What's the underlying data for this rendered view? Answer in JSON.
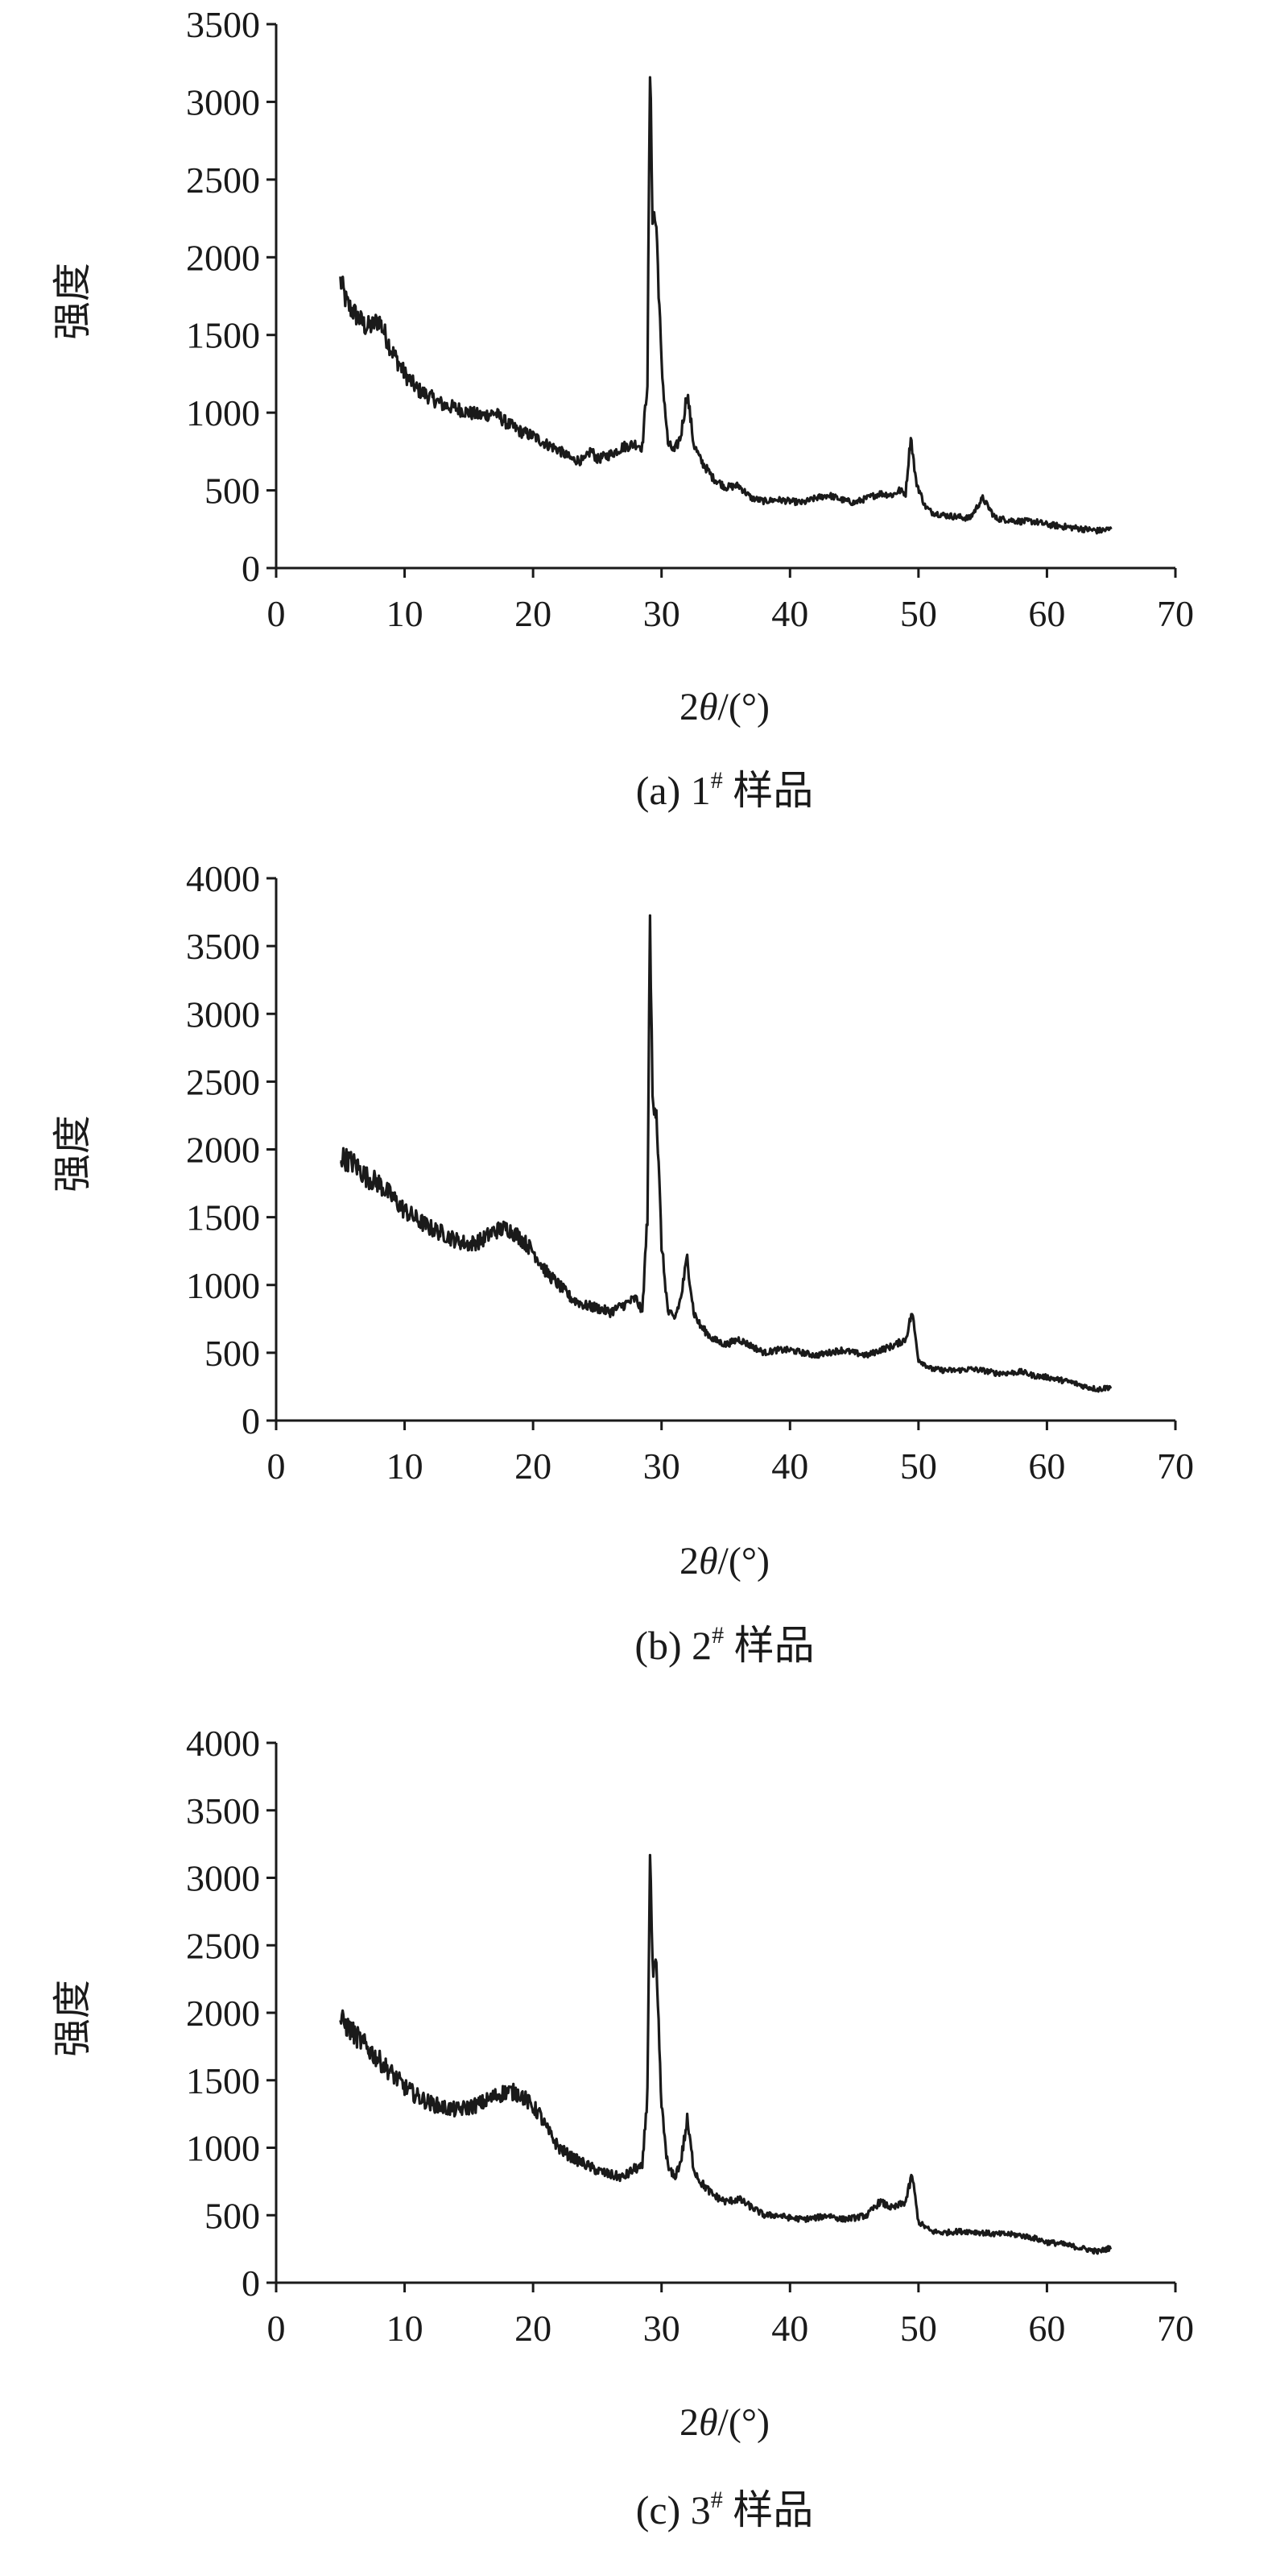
{
  "chart_data": [
    {
      "type": "line",
      "ylabel": "强度",
      "xlabel": "2θ/(°)",
      "xlabel_parts": {
        "num": "2",
        "theta": "θ",
        "unit": "/(°)"
      },
      "caption_parts": {
        "prefix": "(a) ",
        "num": "1",
        "sup": "#",
        "suffix": " 样品"
      },
      "xlim": [
        0,
        70
      ],
      "ylim": [
        0,
        3500
      ],
      "xticks": [
        0,
        10,
        20,
        30,
        40,
        50,
        60,
        70
      ],
      "yticks": [
        0,
        500,
        1000,
        1500,
        2000,
        2500,
        3000,
        3500
      ],
      "grid": false,
      "series": [
        {
          "x": [
            5.0,
            5.5,
            6.0,
            7.0,
            7.5,
            8.0,
            9.0,
            10.0,
            11.0,
            12.0,
            13.0,
            14.0,
            15.0,
            16.0,
            17.0,
            18.0,
            19.0,
            20.0,
            21.0,
            22.0,
            23.0,
            24.0,
            24.5,
            25.0,
            26.0,
            27.0,
            28.0,
            28.5,
            28.9,
            29.1,
            29.3,
            29.6,
            30.0,
            30.5,
            31.0,
            31.5,
            32.0,
            32.5,
            33.0,
            34.0,
            35.0,
            36.0,
            37.0,
            38.0,
            39.0,
            40.0,
            41.0,
            42.0,
            43.0,
            44.0,
            45.0,
            46.0,
            47.0,
            48.0,
            48.5,
            49.0,
            49.4,
            49.8,
            50.5,
            51.0,
            52.0,
            53.0,
            54.0,
            55.0,
            56.0,
            57.0,
            58.0,
            59.0,
            60.0,
            61.0,
            62.0,
            63.0,
            64.0,
            65.0
          ],
          "y": [
            1850,
            1700,
            1650,
            1550,
            1560,
            1600,
            1400,
            1250,
            1150,
            1100,
            1050,
            1030,
            1000,
            980,
            1000,
            930,
            880,
            850,
            800,
            760,
            700,
            690,
            760,
            700,
            730,
            780,
            800,
            780,
            1200,
            3200,
            2300,
            2200,
            1300,
            800,
            750,
            850,
            1130,
            800,
            700,
            580,
            520,
            530,
            450,
            430,
            440,
            430,
            420,
            450,
            470,
            440,
            420,
            450,
            480,
            470,
            500,
            480,
            850,
            560,
            400,
            360,
            340,
            330,
            320,
            450,
            320,
            310,
            300,
            300,
            280,
            270,
            260,
            250,
            240,
            250
          ]
        }
      ]
    },
    {
      "type": "line",
      "ylabel": "强度",
      "xlabel": "2θ/(°)",
      "xlabel_parts": {
        "num": "2",
        "theta": "θ",
        "unit": "/(°)"
      },
      "caption_parts": {
        "prefix": "(b) ",
        "num": "2",
        "sup": "#",
        "suffix": " 样品"
      },
      "xlim": [
        0,
        70
      ],
      "ylim": [
        0,
        4000
      ],
      "xticks": [
        0,
        10,
        20,
        30,
        40,
        50,
        60,
        70
      ],
      "yticks": [
        0,
        500,
        1000,
        1500,
        2000,
        2500,
        3000,
        3500,
        4000
      ],
      "grid": false,
      "series": [
        {
          "x": [
            5.0,
            6.0,
            7.0,
            8.0,
            9.0,
            10.0,
            11.0,
            12.0,
            13.0,
            14.0,
            15.0,
            16.0,
            17.0,
            18.0,
            19.0,
            20.0,
            21.0,
            22.0,
            23.0,
            24.0,
            25.0,
            26.0,
            27.0,
            28.0,
            28.5,
            28.9,
            29.1,
            29.3,
            29.6,
            30.0,
            30.5,
            31.0,
            31.5,
            32.0,
            32.5,
            33.0,
            34.0,
            35.0,
            36.0,
            37.0,
            38.0,
            39.0,
            40.0,
            41.0,
            42.0,
            43.0,
            44.0,
            45.0,
            46.0,
            47.0,
            48.0,
            49.0,
            49.5,
            50.0,
            51.0,
            52.0,
            53.0,
            54.0,
            55.0,
            56.0,
            57.0,
            58.0,
            59.0,
            60.0,
            61.0,
            62.0,
            63.0,
            64.0,
            65.0
          ],
          "y": [
            1950,
            1900,
            1800,
            1750,
            1650,
            1550,
            1480,
            1420,
            1380,
            1330,
            1300,
            1330,
            1400,
            1420,
            1350,
            1250,
            1100,
            1000,
            900,
            850,
            830,
            800,
            850,
            900,
            800,
            1500,
            3650,
            2400,
            2300,
            1300,
            800,
            750,
            900,
            1200,
            800,
            700,
            600,
            560,
            600,
            550,
            500,
            520,
            520,
            500,
            480,
            500,
            520,
            500,
            480,
            520,
            550,
            600,
            800,
            450,
            380,
            370,
            370,
            380,
            370,
            350,
            350,
            360,
            330,
            320,
            300,
            280,
            250,
            230,
            250
          ]
        }
      ]
    },
    {
      "type": "line",
      "ylabel": "强度",
      "xlabel": "2θ/(°)",
      "xlabel_parts": {
        "num": "2",
        "theta": "θ",
        "unit": "/(°)"
      },
      "caption_parts": {
        "prefix": "(c) ",
        "num": "3",
        "sup": "#",
        "suffix": " 样品"
      },
      "xlim": [
        0,
        70
      ],
      "ylim": [
        0,
        4000
      ],
      "xticks": [
        0,
        10,
        20,
        30,
        40,
        50,
        60,
        70
      ],
      "yticks": [
        0,
        500,
        1000,
        1500,
        2000,
        2500,
        3000,
        3500,
        4000
      ],
      "grid": false,
      "series": [
        {
          "x": [
            5.0,
            6.0,
            7.0,
            8.0,
            9.0,
            10.0,
            11.0,
            12.0,
            13.0,
            14.0,
            15.0,
            16.0,
            17.0,
            18.0,
            19.0,
            20.0,
            20.5,
            21.0,
            22.0,
            23.0,
            24.0,
            25.0,
            26.0,
            27.0,
            28.0,
            28.5,
            28.9,
            29.1,
            29.3,
            29.6,
            30.0,
            30.5,
            31.0,
            31.5,
            32.0,
            32.5,
            33.0,
            34.0,
            35.0,
            36.0,
            37.0,
            38.0,
            39.0,
            40.0,
            41.0,
            42.0,
            43.0,
            44.0,
            45.0,
            46.0,
            47.0,
            48.0,
            49.0,
            49.5,
            50.0,
            51.0,
            52.0,
            53.0,
            54.0,
            55.0,
            56.0,
            57.0,
            58.0,
            59.0,
            60.0,
            61.0,
            62.0,
            63.0,
            64.0,
            65.0
          ],
          "y": [
            1950,
            1850,
            1750,
            1650,
            1550,
            1450,
            1380,
            1330,
            1300,
            1280,
            1300,
            1330,
            1380,
            1420,
            1400,
            1300,
            1250,
            1150,
            1000,
            930,
            880,
            830,
            800,
            780,
            850,
            850,
            1400,
            3250,
            2300,
            2300,
            1300,
            850,
            780,
            900,
            1200,
            850,
            750,
            650,
            600,
            620,
            560,
            500,
            500,
            480,
            470,
            480,
            500,
            470,
            480,
            500,
            600,
            550,
            600,
            800,
            450,
            380,
            370,
            380,
            380,
            370,
            360,
            360,
            350,
            330,
            300,
            290,
            270,
            250,
            230,
            260
          ]
        }
      ]
    }
  ]
}
